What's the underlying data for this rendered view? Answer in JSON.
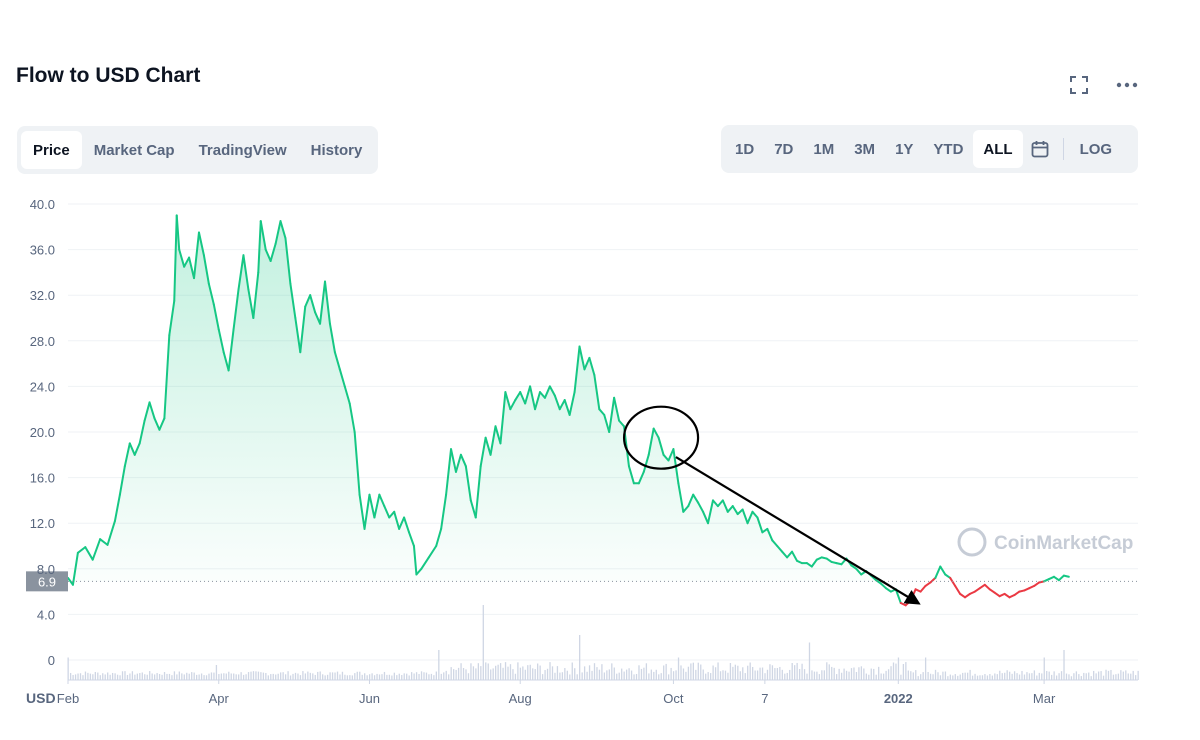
{
  "header": {
    "title": "Flow to USD Chart",
    "fullscreen_icon": "fullscreen-icon",
    "more_icon": "more-icon"
  },
  "tabs": [
    {
      "label": "Price",
      "active": true
    },
    {
      "label": "Market Cap",
      "active": false
    },
    {
      "label": "TradingView",
      "active": false
    },
    {
      "label": "History",
      "active": false
    }
  ],
  "ranges": [
    {
      "label": "1D",
      "active": false
    },
    {
      "label": "7D",
      "active": false
    },
    {
      "label": "1M",
      "active": false
    },
    {
      "label": "3M",
      "active": false
    },
    {
      "label": "1Y",
      "active": false
    },
    {
      "label": "YTD",
      "active": false
    },
    {
      "label": "ALL",
      "active": true
    }
  ],
  "calendar_icon": "calendar-icon",
  "log_label": "LOG",
  "chart_data": {
    "type": "area",
    "currency_label": "USD",
    "current_price": 6.9,
    "current_price_label": "6.9",
    "ylim": [
      0,
      40
    ],
    "yticks": [
      "0",
      "4.0",
      "8.0",
      "12.0",
      "16.0",
      "20.0",
      "24.0",
      "28.0",
      "32.0",
      "36.0",
      "40.0"
    ],
    "xticks": [
      {
        "label": "Feb",
        "index": 0
      },
      {
        "label": "Apr",
        "index": 61
      },
      {
        "label": "Jun",
        "index": 122
      },
      {
        "label": "Aug",
        "index": 183
      },
      {
        "label": "Oct",
        "index": 245
      },
      {
        "label": "7",
        "index": 282
      },
      {
        "label": "2022",
        "index": 336
      },
      {
        "label": "Mar",
        "index": 395
      }
    ],
    "x_count": 434,
    "colors": {
      "up": "#16c784",
      "down": "#ea3943",
      "area": "#16c784"
    },
    "watermark": "CoinMarketCap",
    "price_points": [
      [
        0,
        7.2
      ],
      [
        2,
        6.6
      ],
      [
        4,
        9.4
      ],
      [
        7,
        9.9
      ],
      [
        10,
        8.8
      ],
      [
        13,
        10.6
      ],
      [
        16,
        10.1
      ],
      [
        19,
        12.2
      ],
      [
        21,
        14.5
      ],
      [
        23,
        17.0
      ],
      [
        25,
        19.0
      ],
      [
        27,
        18.0
      ],
      [
        29,
        19.0
      ],
      [
        31,
        21.0
      ],
      [
        33,
        22.6
      ],
      [
        35,
        21.2
      ],
      [
        37,
        20.2
      ],
      [
        39,
        21.2
      ],
      [
        41,
        28.5
      ],
      [
        43,
        31.5
      ],
      [
        44,
        39.0
      ],
      [
        45,
        36.0
      ],
      [
        47,
        34.5
      ],
      [
        49,
        35.3
      ],
      [
        51,
        33.5
      ],
      [
        53,
        37.5
      ],
      [
        55,
        35.5
      ],
      [
        57,
        33.0
      ],
      [
        59,
        31.2
      ],
      [
        61,
        29.0
      ],
      [
        63,
        27.0
      ],
      [
        65,
        25.4
      ],
      [
        67,
        29.0
      ],
      [
        69,
        32.5
      ],
      [
        71,
        35.5
      ],
      [
        73,
        32.5
      ],
      [
        75,
        30.0
      ],
      [
        77,
        34.0
      ],
      [
        78,
        38.5
      ],
      [
        80,
        36.0
      ],
      [
        82,
        35.0
      ],
      [
        84,
        36.5
      ],
      [
        86,
        38.5
      ],
      [
        88,
        37.0
      ],
      [
        90,
        33.0
      ],
      [
        92,
        30.0
      ],
      [
        94,
        27.0
      ],
      [
        96,
        31.0
      ],
      [
        98,
        32.0
      ],
      [
        100,
        30.5
      ],
      [
        102,
        29.5
      ],
      [
        104,
        33.2
      ],
      [
        106,
        29.5
      ],
      [
        108,
        27.0
      ],
      [
        110,
        25.5
      ],
      [
        112,
        24.0
      ],
      [
        114,
        22.5
      ],
      [
        116,
        20.0
      ],
      [
        118,
        14.5
      ],
      [
        120,
        11.5
      ],
      [
        122,
        14.5
      ],
      [
        124,
        12.5
      ],
      [
        126,
        14.5
      ],
      [
        128,
        13.5
      ],
      [
        130,
        12.5
      ],
      [
        132,
        13.0
      ],
      [
        134,
        11.5
      ],
      [
        136,
        12.5
      ],
      [
        138,
        11.2
      ],
      [
        140,
        10.0
      ],
      [
        141,
        7.5
      ],
      [
        143,
        8.0
      ],
      [
        146,
        9.0
      ],
      [
        149,
        10.0
      ],
      [
        151,
        11.5
      ],
      [
        153,
        14.5
      ],
      [
        155,
        18.5
      ],
      [
        157,
        16.5
      ],
      [
        159,
        18.0
      ],
      [
        161,
        17.0
      ],
      [
        163,
        14.0
      ],
      [
        165,
        12.5
      ],
      [
        167,
        17.0
      ],
      [
        169,
        19.5
      ],
      [
        171,
        18.0
      ],
      [
        173,
        20.5
      ],
      [
        175,
        19.0
      ],
      [
        177,
        23.5
      ],
      [
        179,
        22.0
      ],
      [
        181,
        22.8
      ],
      [
        183,
        23.5
      ],
      [
        185,
        22.5
      ],
      [
        187,
        24.0
      ],
      [
        189,
        22.0
      ],
      [
        191,
        23.5
      ],
      [
        193,
        23.0
      ],
      [
        195,
        24.0
      ],
      [
        197,
        23.2
      ],
      [
        199,
        22.0
      ],
      [
        201,
        22.8
      ],
      [
        203,
        21.5
      ],
      [
        205,
        23.5
      ],
      [
        207,
        27.5
      ],
      [
        209,
        25.5
      ],
      [
        211,
        26.5
      ],
      [
        213,
        25.0
      ],
      [
        215,
        22.0
      ],
      [
        217,
        21.5
      ],
      [
        219,
        20.0
      ],
      [
        221,
        23.0
      ],
      [
        223,
        21.0
      ],
      [
        225,
        20.5
      ],
      [
        227,
        17.0
      ],
      [
        229,
        15.5
      ],
      [
        231,
        15.5
      ],
      [
        233,
        16.5
      ],
      [
        235,
        18.0
      ],
      [
        237,
        20.3
      ],
      [
        239,
        19.5
      ],
      [
        241,
        18.0
      ],
      [
        243,
        17.5
      ],
      [
        245,
        18.5
      ],
      [
        247,
        15.5
      ],
      [
        249,
        13.0
      ],
      [
        251,
        13.5
      ],
      [
        253,
        14.5
      ],
      [
        255,
        13.8
      ],
      [
        257,
        13.0
      ],
      [
        259,
        12.0
      ],
      [
        261,
        14.0
      ],
      [
        263,
        13.5
      ],
      [
        265,
        14.0
      ],
      [
        267,
        13.0
      ],
      [
        269,
        13.5
      ],
      [
        271,
        12.8
      ],
      [
        273,
        13.2
      ],
      [
        275,
        12.0
      ],
      [
        277,
        13.0
      ],
      [
        279,
        12.5
      ],
      [
        281,
        11.2
      ],
      [
        283,
        11.5
      ],
      [
        285,
        10.5
      ],
      [
        287,
        10.0
      ],
      [
        289,
        9.5
      ],
      [
        291,
        9.0
      ],
      [
        293,
        9.5
      ],
      [
        295,
        8.7
      ],
      [
        297,
        8.5
      ],
      [
        299,
        8.5
      ],
      [
        301,
        8.2
      ],
      [
        303,
        8.8
      ],
      [
        305,
        9.0
      ],
      [
        307,
        8.9
      ],
      [
        309,
        8.6
      ],
      [
        311,
        8.5
      ],
      [
        313,
        8.4
      ],
      [
        315,
        8.9
      ],
      [
        317,
        8.3
      ],
      [
        319,
        8.0
      ],
      [
        321,
        7.5
      ],
      [
        323,
        7.8
      ],
      [
        325,
        7.4
      ],
      [
        327,
        7.0
      ],
      [
        329,
        6.7
      ],
      [
        331,
        6.3
      ],
      [
        333,
        6.0
      ],
      [
        335,
        6.2
      ],
      [
        337,
        5.0
      ],
      [
        339,
        4.8
      ],
      [
        341,
        5.2
      ],
      [
        343,
        6.2
      ],
      [
        345,
        6.0
      ],
      [
        347,
        6.5
      ],
      [
        349,
        6.8
      ],
      [
        351,
        7.2
      ],
      [
        353,
        8.2
      ],
      [
        355,
        7.5
      ],
      [
        357,
        7.2
      ],
      [
        359,
        6.5
      ],
      [
        361,
        5.8
      ],
      [
        363,
        5.5
      ],
      [
        365,
        5.8
      ],
      [
        367,
        6.0
      ],
      [
        369,
        6.3
      ],
      [
        371,
        6.6
      ],
      [
        373,
        6.2
      ],
      [
        375,
        5.9
      ],
      [
        377,
        5.6
      ],
      [
        379,
        5.8
      ],
      [
        381,
        5.5
      ],
      [
        383,
        5.7
      ],
      [
        385,
        6.0
      ],
      [
        387,
        6.1
      ],
      [
        389,
        6.3
      ],
      [
        391,
        6.5
      ],
      [
        393,
        6.8
      ],
      [
        395,
        6.9
      ],
      [
        397,
        7.1
      ],
      [
        399,
        7.3
      ],
      [
        401,
        7.0
      ],
      [
        403,
        7.4
      ],
      [
        405,
        7.3
      ]
    ],
    "volume": [
      {
        "index": 0,
        "value": 0.3
      },
      {
        "index": 60,
        "value": 0.2
      },
      {
        "index": 150,
        "value": 0.4
      },
      {
        "index": 168,
        "value": 1.0
      },
      {
        "index": 207,
        "value": 0.6
      },
      {
        "index": 247,
        "value": 0.3
      },
      {
        "index": 300,
        "value": 0.5
      },
      {
        "index": 336,
        "value": 0.3
      },
      {
        "index": 347,
        "value": 0.3
      },
      {
        "index": 395,
        "value": 0.3
      },
      {
        "index": 403,
        "value": 0.4
      }
    ],
    "annotations": [
      {
        "type": "ellipse",
        "center_index": 240,
        "center_value": 19.5
      },
      {
        "type": "arrow",
        "from_index": 246,
        "from_value": 17.8,
        "to_index": 344,
        "to_value": 5.0
      }
    ],
    "grid": true
  }
}
